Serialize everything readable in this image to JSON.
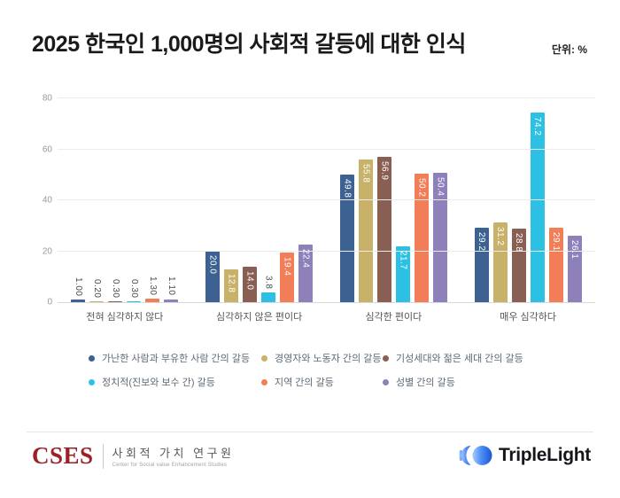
{
  "header": {
    "title": "2025 한국인 1,000명의 사회적 갈등에 대한 인식",
    "unit_label": "단위: %"
  },
  "chart_data": {
    "type": "bar",
    "title": "2025 한국인 1,000명의 사회적 갈등에 대한 인식",
    "unit": "%",
    "categories": [
      "전혀 심각하지 않다",
      "심각하지 않은 편이다",
      "심각한 편이다",
      "매우 심각하다"
    ],
    "series": [
      {
        "name": "가난한 사람과 부유한 사람 간의 갈등",
        "color": "#3d6292",
        "values": [
          1.0,
          20.0,
          49.8,
          29.2
        ],
        "labels": [
          "1.00",
          "20.0",
          "49.8",
          "29.2"
        ]
      },
      {
        "name": "경영자와 노동자 간의 갈등",
        "color": "#c8b269",
        "values": [
          0.2,
          12.8,
          55.8,
          31.2
        ],
        "labels": [
          "0.20",
          "12.8",
          "55.8",
          "31.2"
        ]
      },
      {
        "name": "기성세대와 젊은 세대 간의 갈등",
        "color": "#8a5f53",
        "values": [
          0.3,
          14.0,
          56.9,
          28.8
        ],
        "labels": [
          "0.30",
          "14.0",
          "56.9",
          "28.8"
        ]
      },
      {
        "name": "정치적(진보와 보수 간) 갈등",
        "color": "#2cc1e2",
        "values": [
          0.3,
          3.8,
          21.7,
          74.2
        ],
        "labels": [
          "0.30",
          "3.8",
          "21.7",
          "74.2"
        ]
      },
      {
        "name": "지역 간의 갈등",
        "color": "#f27e58",
        "values": [
          1.3,
          19.4,
          50.2,
          29.1
        ],
        "labels": [
          "1.30",
          "19.4",
          "50.2",
          "29.1"
        ]
      },
      {
        "name": "성별 간의 갈등",
        "color": "#8d80bb",
        "values": [
          1.1,
          22.4,
          50.4,
          26.1
        ],
        "labels": [
          "1.10",
          "22.4",
          "50.4",
          "26.1"
        ]
      }
    ],
    "ylim": [
      0,
      80
    ],
    "yticks": [
      0,
      20,
      40,
      60,
      80
    ],
    "grid": true,
    "legend_position": "bottom"
  },
  "footer": {
    "cses": {
      "acronym": "CSES",
      "korean": "사회적 가치 연구원",
      "english": "Center for Social value Enhancement Studies"
    },
    "triplelight": {
      "name": "TripleLight"
    }
  }
}
